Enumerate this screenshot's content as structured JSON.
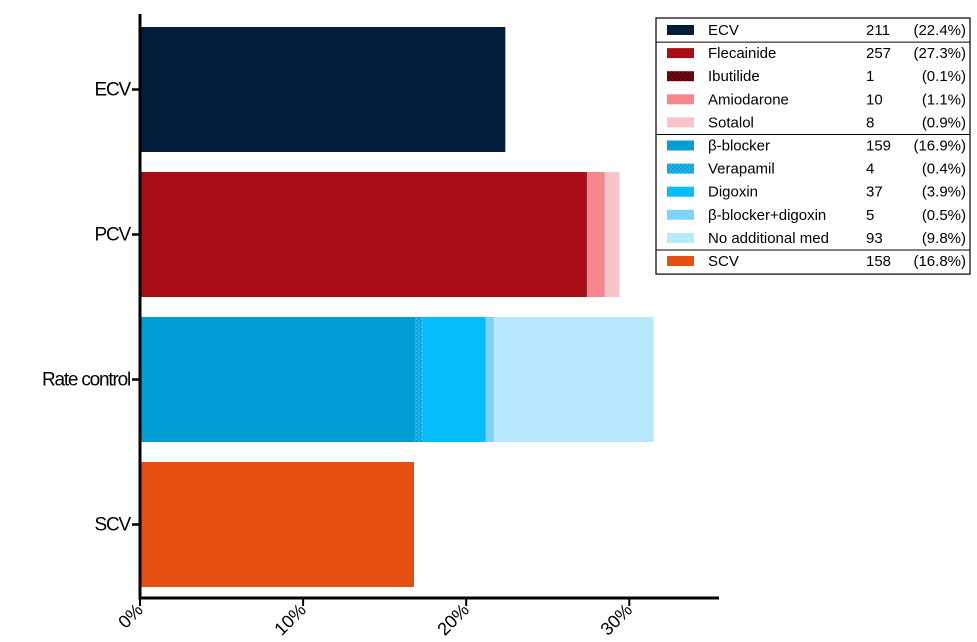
{
  "chart_data": {
    "type": "bar",
    "orientation": "horizontal",
    "stacked": true,
    "categories": [
      "ECV",
      "PCV",
      "Rate control",
      "SCV"
    ],
    "xlim": [
      0,
      35.5
    ],
    "x_ticks": [
      0,
      10,
      20,
      30
    ],
    "x_tick_labels": [
      "0%",
      "10%",
      "20%",
      "30%"
    ],
    "grid": false,
    "legend_position": "top-right",
    "stacks": [
      {
        "category": "ECV",
        "segments": [
          {
            "name": "ECV",
            "value": 22.4
          }
        ]
      },
      {
        "category": "PCV",
        "segments": [
          {
            "name": "Flecainide",
            "value": 27.3
          },
          {
            "name": "Ibutilide",
            "value": 0.1
          },
          {
            "name": "Amiodarone",
            "value": 1.1
          },
          {
            "name": "Sotalol",
            "value": 0.9
          }
        ]
      },
      {
        "category": "Rate control",
        "segments": [
          {
            "name": "β-blocker",
            "value": 16.9
          },
          {
            "name": "Verapamil",
            "value": 0.4
          },
          {
            "name": "Digoxin",
            "value": 3.9
          },
          {
            "name": "β-blocker+digoxin",
            "value": 0.5
          },
          {
            "name": "No additional med",
            "value": 9.8
          }
        ]
      },
      {
        "category": "SCV",
        "segments": [
          {
            "name": "SCV",
            "value": 16.8
          }
        ]
      }
    ],
    "legend": [
      {
        "name": "ECV",
        "count": "211",
        "pct": "(22.4%)",
        "color": "#021d3c",
        "pattern": "none",
        "group_start": true
      },
      {
        "name": "Flecainide",
        "count": "257",
        "pct": "(27.3%)",
        "color": "#a90c14",
        "pattern": "none",
        "group_start": true
      },
      {
        "name": "Ibutilide",
        "count": "1",
        "pct": "(0.1%)",
        "color": "#7a0a12",
        "pattern": "dots-dark",
        "group_start": false
      },
      {
        "name": "Amiodarone",
        "count": "10",
        "pct": "(1.1%)",
        "color": "#f5868c",
        "pattern": "none",
        "group_start": false
      },
      {
        "name": "Sotalol",
        "count": "8",
        "pct": "(0.9%)",
        "color": "#f8c4c9",
        "pattern": "none",
        "group_start": false
      },
      {
        "name": "β-blocker",
        "count": "159",
        "pct": "(16.9%)",
        "color": "#039dd6",
        "pattern": "none",
        "group_start": true
      },
      {
        "name": "Verapamil",
        "count": "4",
        "pct": "(0.4%)",
        "color": "#1bb8f0",
        "pattern": "dots-light",
        "group_start": false
      },
      {
        "name": "Digoxin",
        "count": "37",
        "pct": "(3.9%)",
        "color": "#05bdfb",
        "pattern": "none",
        "group_start": false
      },
      {
        "name": "β-blocker+digoxin",
        "count": "5",
        "pct": "(0.5%)",
        "color": "#7fd3f8",
        "pattern": "none",
        "group_start": false
      },
      {
        "name": "No additional med",
        "count": "93",
        "pct": "(9.8%)",
        "color": "#b5e9fb",
        "pattern": "none",
        "group_start": false
      },
      {
        "name": "SCV",
        "count": "158",
        "pct": "(16.8%)",
        "color": "#e55012",
        "pattern": "none",
        "group_start": true
      }
    ]
  }
}
